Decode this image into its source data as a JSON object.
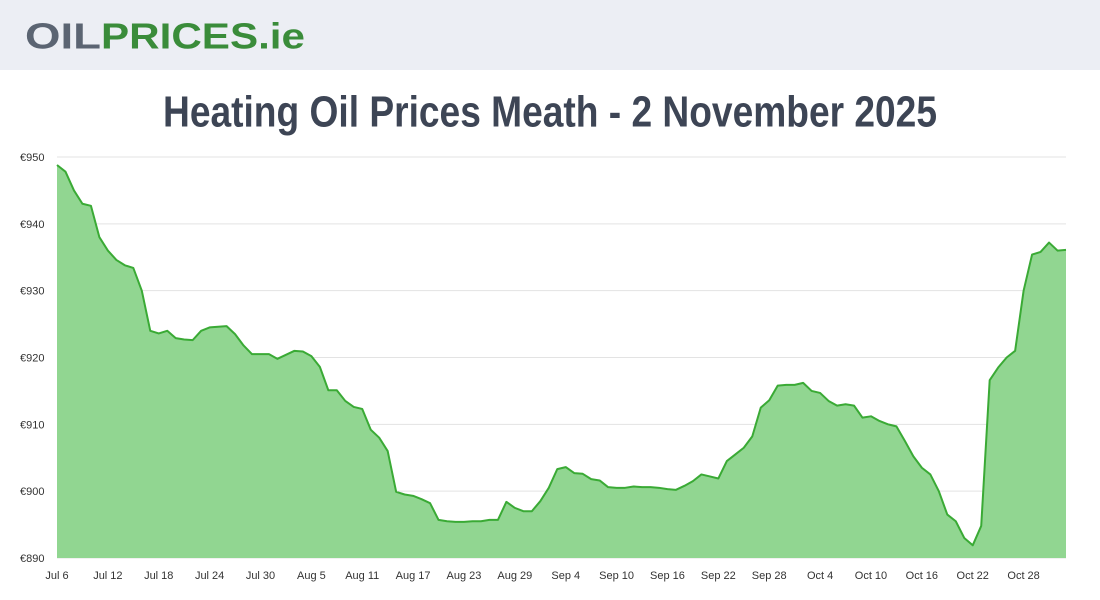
{
  "header": {
    "logo_part1": "OIL",
    "logo_part2": "PRICES.ie"
  },
  "chart_data": {
    "type": "area",
    "title": "Heating Oil Prices Meath - 2 November 2025",
    "categories": [
      "Jul 6",
      null,
      null,
      null,
      null,
      null,
      "Jul 12",
      null,
      null,
      null,
      null,
      null,
      "Jul 18",
      null,
      null,
      null,
      null,
      null,
      "Jul 24",
      null,
      null,
      null,
      null,
      null,
      "Jul 30",
      null,
      null,
      null,
      null,
      null,
      "Aug 5",
      null,
      null,
      null,
      null,
      null,
      "Aug 11",
      null,
      null,
      null,
      null,
      null,
      "Aug 17",
      null,
      null,
      null,
      null,
      null,
      "Aug 23",
      null,
      null,
      null,
      null,
      null,
      "Aug 29",
      null,
      null,
      null,
      null,
      null,
      "Sep 4",
      null,
      null,
      null,
      null,
      null,
      "Sep 10",
      null,
      null,
      null,
      null,
      null,
      "Sep 16",
      null,
      null,
      null,
      null,
      null,
      "Sep 22",
      null,
      null,
      null,
      null,
      null,
      "Sep 28",
      null,
      null,
      null,
      null,
      null,
      "Oct 4",
      null,
      null,
      null,
      null,
      null,
      "Oct 10",
      null,
      null,
      null,
      null,
      null,
      "Oct 16",
      null,
      null,
      null,
      null,
      null,
      "Oct 22",
      null,
      null,
      null,
      null,
      null,
      "Oct 28",
      null,
      null,
      null,
      null,
      null
    ],
    "values": [
      948.8,
      947.8,
      945,
      943,
      942.7,
      938,
      936,
      934.6,
      933.8,
      933.4,
      930,
      924,
      923.6,
      924,
      922.9,
      922.7,
      922.6,
      924,
      924.5,
      924.6,
      924.7,
      923.5,
      921.8,
      920.5,
      920.5,
      920.5,
      919.8,
      920.4,
      921,
      920.9,
      920.2,
      918.6,
      915.1,
      915.1,
      913.5,
      912.6,
      912.3,
      909.2,
      908,
      906,
      899.9,
      899.5,
      899.3,
      898.8,
      898.2,
      895.7,
      895.5,
      895.4,
      895.4,
      895.5,
      895.5,
      895.7,
      895.7,
      898.4,
      897.5,
      897,
      897,
      898.5,
      900.5,
      903.3,
      903.6,
      902.7,
      902.6,
      901.8,
      901.6,
      900.6,
      900.5,
      900.5,
      900.7,
      900.6,
      900.6,
      900.5,
      900.3,
      900.2,
      900.8,
      901.5,
      902.5,
      902.2,
      901.9,
      904.5,
      905.5,
      906.5,
      908.2,
      912.5,
      913.6,
      915.8,
      915.9,
      915.9,
      916.2,
      915,
      914.7,
      913.5,
      912.8,
      913,
      912.8,
      911,
      911.2,
      910.5,
      910,
      909.7,
      907.5,
      905.2,
      903.5,
      902.5,
      900,
      896.5,
      895.5,
      893,
      891.9,
      894.8,
      916.6,
      918.5,
      920,
      921,
      930,
      935.4,
      935.8,
      937.2,
      936,
      936.1
    ],
    "color": "#3aaa35",
    "fill_color": "#91d691",
    "ylim": [
      890,
      950
    ],
    "yticks": [
      {
        "value": 890,
        "label": "€890"
      },
      {
        "value": 900,
        "label": "€900"
      },
      {
        "value": 910,
        "label": "€910"
      },
      {
        "value": 920,
        "label": "€920"
      },
      {
        "value": 930,
        "label": "€930"
      },
      {
        "value": 940,
        "label": "€940"
      },
      {
        "value": 950,
        "label": "€950"
      }
    ],
    "grid": true
  }
}
